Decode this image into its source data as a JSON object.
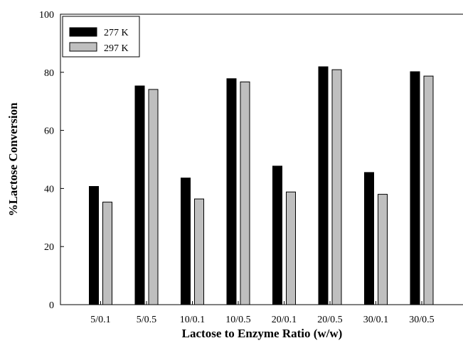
{
  "chart_data": {
    "type": "bar",
    "categories": [
      "5/0.1",
      "5/0.5",
      "10/0.1",
      "10/0.5",
      "20/0.1",
      "20/0.5",
      "30/0.1",
      "30/0.5"
    ],
    "series": [
      {
        "name": "277 K",
        "color": "#000000",
        "values": [
          40.7,
          75.3,
          43.6,
          77.8,
          47.7,
          81.9,
          45.5,
          80.2
        ]
      },
      {
        "name": "297 K",
        "color": "#bfbfbf",
        "values": [
          35.3,
          74.1,
          36.4,
          76.7,
          38.8,
          80.9,
          38.0,
          78.7
        ]
      }
    ],
    "xlabel": "Lactose to Enzyme Ratio (w/w)",
    "ylabel": "%Lactose Conversion",
    "ylim": [
      0,
      100
    ],
    "yticks": [
      0,
      20,
      40,
      60,
      80,
      100
    ],
    "grid": false,
    "legend_position": "top-left"
  }
}
